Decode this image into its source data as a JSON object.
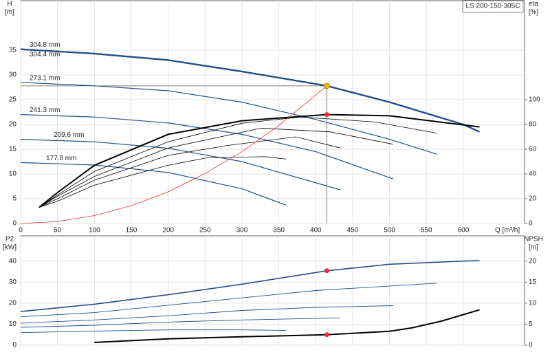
{
  "chart_data": [
    {
      "type": "line",
      "annotations": [
        "LS 200-150-305C"
      ],
      "ylabel": [
        "H",
        "[m]"
      ],
      "y2label": [
        "eta",
        "[%]"
      ],
      "xlabel": "Q [m³/h]",
      "xlim": [
        0,
        683
      ],
      "xticks": [
        0,
        50,
        100,
        150,
        200,
        250,
        300,
        350,
        400,
        450,
        500,
        550,
        600
      ],
      "ylim": [
        0,
        45
      ],
      "yticks": [
        0,
        5,
        10,
        15,
        20,
        25,
        30,
        35
      ],
      "y2lim": [
        0,
        180
      ],
      "y2ticks": [
        0,
        20,
        40,
        60,
        80,
        100
      ],
      "grid": true,
      "series": [
        {
          "name": "304.8 mm",
          "color": "#1f4e8c",
          "linewidth": 2.2,
          "x": [
            0,
            100,
            200,
            300,
            415,
            500,
            600,
            622
          ],
          "values": [
            35.2,
            34.3,
            33,
            30.7,
            27.8,
            24.5,
            20,
            18.5
          ]
        },
        {
          "name": "304.4 mm",
          "color": "#1f4e8c",
          "linewidth": 2.2,
          "x": [
            0,
            100,
            200,
            300,
            415,
            500,
            600,
            622
          ],
          "values": [
            35.2,
            34.3,
            33,
            30.7,
            27.8,
            24.5,
            20,
            18.5
          ]
        },
        {
          "name": "273.1 mm",
          "color": "#1f4e8c",
          "linewidth": 1.2,
          "x": [
            0,
            100,
            200,
            300,
            400,
            500,
            564
          ],
          "values": [
            28.5,
            27.8,
            26.8,
            24.5,
            21,
            17,
            14
          ]
        },
        {
          "name": "241.3 mm",
          "color": "#1f4e8c",
          "linewidth": 1.2,
          "x": [
            0,
            100,
            200,
            300,
            400,
            505
          ],
          "values": [
            22,
            21.5,
            20.3,
            18,
            14.5,
            9
          ]
        },
        {
          "name": "209.6 mm",
          "color": "#1f4e8c",
          "linewidth": 1.2,
          "x": [
            0,
            100,
            200,
            300,
            433
          ],
          "values": [
            17,
            16.5,
            15.2,
            12.5,
            6.8
          ]
        },
        {
          "name": "177.8 mm",
          "color": "#1f4e8c",
          "linewidth": 1.2,
          "x": [
            0,
            100,
            200,
            300,
            360
          ],
          "values": [
            12.3,
            11.8,
            10.3,
            7,
            3.7
          ]
        },
        {
          "color": "#000000",
          "linewidth": 2,
          "axis": "y2",
          "x": [
            25,
            50,
            100,
            200,
            300,
            415,
            500,
            622
          ],
          "values": [
            13,
            25,
            47,
            72,
            83,
            88,
            87,
            78
          ]
        },
        {
          "color": "#000000",
          "linewidth": 0.8,
          "axis": "y2",
          "x": [
            25,
            50,
            100,
            200,
            300,
            380,
            480,
            564
          ],
          "values": [
            13,
            23,
            42,
            66,
            81,
            86,
            82,
            73
          ]
        },
        {
          "color": "#000000",
          "linewidth": 0.8,
          "axis": "y2",
          "x": [
            25,
            50,
            100,
            200,
            326,
            420,
            505
          ],
          "values": [
            13,
            22,
            38,
            61,
            77,
            74,
            64
          ]
        },
        {
          "color": "#000000",
          "linewidth": 0.8,
          "axis": "y2",
          "x": [
            25,
            50,
            100,
            200,
            280,
            373,
            433
          ],
          "values": [
            13,
            20,
            35,
            55,
            63,
            70,
            61
          ]
        },
        {
          "color": "#000000",
          "linewidth": 0.8,
          "axis": "y2",
          "x": [
            25,
            50,
            100,
            200,
            252,
            330,
            360
          ],
          "values": [
            13,
            18,
            31,
            47,
            53,
            54,
            52
          ]
        },
        {
          "color": "#e8312a",
          "linewidth": 0.8,
          "x": [
            0,
            50,
            100,
            150,
            200,
            250,
            300,
            350,
            415
          ],
          "values": [
            0,
            0.4,
            1.6,
            3.6,
            6.4,
            10.1,
            14.5,
            19.8,
            27.8
          ]
        }
      ],
      "duty_point": {
        "x": 415,
        "H": 27.8,
        "eta": 88
      }
    },
    {
      "type": "line",
      "ylabel": [
        "P2",
        "[kW]"
      ],
      "y2label": [
        "NPSH",
        "[m]"
      ],
      "xlim": [
        0,
        683
      ],
      "xticks": [
        0,
        50,
        100,
        150,
        200,
        250,
        300,
        350,
        400,
        450,
        500,
        550,
        600
      ],
      "ylim": [
        0,
        52
      ],
      "yticks": [
        0,
        10,
        20,
        30,
        40
      ],
      "y2lim": [
        0,
        26
      ],
      "y2ticks": [
        0,
        5,
        10,
        15,
        20
      ],
      "grid": true,
      "series": [
        {
          "color": "#1f4e8c",
          "linewidth": 1.6,
          "x": [
            0,
            100,
            200,
            300,
            415,
            500,
            600,
            622
          ],
          "values": [
            16,
            19.5,
            24,
            29,
            35.4,
            38.5,
            40,
            40.2
          ]
        },
        {
          "color": "#1f4e8c",
          "linewidth": 0.9,
          "x": [
            0,
            100,
            200,
            300,
            400,
            564
          ],
          "values": [
            13.5,
            15.5,
            19,
            22.5,
            26,
            29.5
          ]
        },
        {
          "color": "#1f4e8c",
          "linewidth": 0.9,
          "x": [
            0,
            100,
            200,
            300,
            400,
            505
          ],
          "values": [
            10.5,
            12,
            14,
            16.5,
            18,
            18.8
          ]
        },
        {
          "color": "#1f4e8c",
          "linewidth": 0.9,
          "x": [
            0,
            100,
            200,
            300,
            433
          ],
          "values": [
            8.5,
            9.5,
            11,
            12,
            13
          ]
        },
        {
          "color": "#1f4e8c",
          "linewidth": 0.9,
          "x": [
            0,
            100,
            200,
            300,
            360
          ],
          "values": [
            6,
            6.7,
            7.3,
            7.3,
            7
          ]
        },
        {
          "color": "#000000",
          "linewidth": 2,
          "axis": "y2",
          "x": [
            100,
            200,
            300,
            415,
            500,
            530,
            570,
            622
          ],
          "values": [
            0.65,
            1.5,
            2,
            2.5,
            3.3,
            4.1,
            5.7,
            8.4
          ]
        }
      ],
      "duty_point": {
        "x": 415,
        "P2": 35.4,
        "NPSH": 2.5
      }
    }
  ]
}
